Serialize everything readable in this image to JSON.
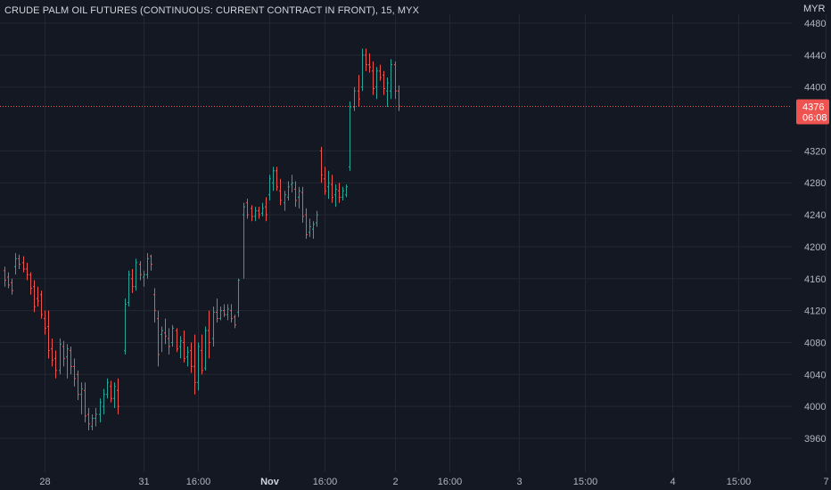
{
  "title": "CRUDE PALM OIL FUTURES (CONTINUOUS: CURRENT CONTRACT IN FRONT), 15, MYX",
  "currency": "MYR",
  "colors": {
    "up": "#26a69a",
    "down": "#ef5350",
    "background": "#141823",
    "grid": "#232733",
    "price_line": "#ef5350"
  },
  "current_price": {
    "price": "4376",
    "countdown": "06:08",
    "value": 4376
  },
  "chart_data": {
    "type": "ohlc-bar",
    "interval": "15",
    "exchange": "MYX",
    "y_ticks": [
      4480,
      4440,
      4400,
      4320,
      4280,
      4240,
      4200,
      4160,
      4120,
      4080,
      4040,
      4000,
      3960
    ],
    "ylim": [
      3930,
      4498
    ],
    "x_ticks": [
      {
        "label": "28",
        "bold": false,
        "bar": 11
      },
      {
        "label": "31",
        "bold": false,
        "bar": 37
      },
      {
        "label": "16:00",
        "bold": false,
        "bar": 52
      },
      {
        "label": "Nov",
        "bold": true,
        "bar": 71
      },
      {
        "label": "16:00",
        "bold": false,
        "bar": 86
      },
      {
        "label": "2",
        "bold": false,
        "bar": 105
      },
      {
        "label": "16:00",
        "bold": false,
        "bar": 120
      },
      {
        "label": "3",
        "bold": false,
        "bar": 139
      },
      {
        "label": "15:00",
        "bold": false,
        "bar": 157
      },
      {
        "label": "4",
        "bold": false,
        "bar": 181
      },
      {
        "label": "15:00",
        "bold": false,
        "bar": 199
      },
      {
        "label": "7",
        "bold": false,
        "bar": 223
      }
    ],
    "bars": [
      [
        4170,
        4175,
        4150,
        4158
      ],
      [
        4162,
        4168,
        4148,
        4152
      ],
      [
        4155,
        4160,
        4140,
        4145
      ],
      [
        4175,
        4192,
        4165,
        4185
      ],
      [
        4185,
        4190,
        4172,
        4178
      ],
      [
        4180,
        4188,
        4168,
        4172
      ],
      [
        4172,
        4180,
        4158,
        4165
      ],
      [
        4165,
        4168,
        4140,
        4148
      ],
      [
        4150,
        4158,
        4118,
        4125
      ],
      [
        4135,
        4150,
        4125,
        4132
      ],
      [
        4140,
        4145,
        4110,
        4115
      ],
      [
        4110,
        4120,
        4090,
        4098
      ],
      [
        4100,
        4120,
        4060,
        4070
      ],
      [
        4072,
        4085,
        4050,
        4058
      ],
      [
        4060,
        4070,
        4035,
        4045
      ],
      [
        4045,
        4085,
        4040,
        4078
      ],
      [
        4075,
        4082,
        4050,
        4060
      ],
      [
        4062,
        4078,
        4035,
        4072
      ],
      [
        4070,
        4075,
        4040,
        4050
      ],
      [
        4050,
        4060,
        4025,
        4035
      ],
      [
        4040,
        4045,
        4008,
        4015
      ],
      [
        4015,
        4030,
        3990,
        4022
      ],
      [
        4020,
        4030,
        3980,
        3988
      ],
      [
        3990,
        3998,
        3970,
        3978
      ],
      [
        3975,
        3990,
        3970,
        3985
      ],
      [
        3985,
        3998,
        3975,
        3990
      ],
      [
        3990,
        4010,
        3980,
        4005
      ],
      [
        4000,
        4022,
        3990,
        4015
      ],
      [
        4015,
        4035,
        4010,
        4030
      ],
      [
        4025,
        4032,
        4005,
        4010
      ],
      [
        4010,
        4030,
        3998,
        4025
      ],
      [
        4020,
        4035,
        3990,
        4000
      ],
      [
        4070,
        4135,
        4065,
        4128
      ],
      [
        4130,
        4170,
        4125,
        4165
      ],
      [
        4160,
        4172,
        4142,
        4150
      ],
      [
        4150,
        4185,
        4145,
        4180
      ],
      [
        4178,
        4182,
        4158,
        4165
      ],
      [
        4162,
        4170,
        4150,
        4165
      ],
      [
        4165,
        4192,
        4160,
        4185
      ],
      [
        4188,
        4190,
        4170,
        4178
      ],
      [
        4140,
        4148,
        4105,
        4120
      ],
      [
        4110,
        4120,
        4050,
        4065
      ],
      [
        4090,
        4100,
        4068,
        4095
      ],
      [
        4092,
        4110,
        4078,
        4088
      ],
      [
        4085,
        4098,
        4065,
        4075
      ],
      [
        4080,
        4102,
        4075,
        4098
      ],
      [
        4095,
        4098,
        4068,
        4072
      ],
      [
        4075,
        4088,
        4060,
        4082
      ],
      [
        4080,
        4095,
        4055,
        4060
      ],
      [
        4062,
        4075,
        4050,
        4068
      ],
      [
        4070,
        4080,
        4042,
        4050
      ],
      [
        4050,
        4090,
        4015,
        4030
      ],
      [
        4030,
        4080,
        4020,
        4075
      ],
      [
        4070,
        4090,
        4040,
        4045
      ],
      [
        4048,
        4100,
        4045,
        4095
      ],
      [
        4095,
        4120,
        4060,
        4080
      ],
      [
        4085,
        4125,
        4075,
        4118
      ],
      [
        4118,
        4135,
        4105,
        4110
      ],
      [
        4110,
        4125,
        4108,
        4120
      ],
      [
        4120,
        4128,
        4112,
        4115
      ],
      [
        4115,
        4128,
        4108,
        4122
      ],
      [
        4120,
        4128,
        4105,
        4110
      ],
      [
        4112,
        4115,
        4098,
        4102
      ],
      [
        4118,
        4160,
        4112,
        4158
      ],
      [
        4240,
        4255,
        4160,
        4250
      ],
      [
        4255,
        4260,
        4235,
        4240
      ],
      [
        4248,
        4252,
        4232,
        4238
      ],
      [
        4238,
        4250,
        4232,
        4245
      ],
      [
        4245,
        4250,
        4235,
        4240
      ],
      [
        4242,
        4255,
        4238,
        4248
      ],
      [
        4250,
        4262,
        4232,
        4240
      ],
      [
        4265,
        4290,
        4258,
        4285
      ],
      [
        4280,
        4300,
        4270,
        4295
      ],
      [
        4295,
        4300,
        4270,
        4275
      ],
      [
        4270,
        4285,
        4252,
        4258
      ],
      [
        4255,
        4270,
        4245,
        4265
      ],
      [
        4262,
        4282,
        4258,
        4275
      ],
      [
        4278,
        4290,
        4268,
        4280
      ],
      [
        4272,
        4282,
        4250,
        4258
      ],
      [
        4262,
        4275,
        4248,
        4270
      ],
      [
        4268,
        4275,
        4230,
        4238
      ],
      [
        4240,
        4248,
        4210,
        4215
      ],
      [
        4218,
        4235,
        4212,
        4225
      ],
      [
        4222,
        4232,
        4210,
        4228
      ],
      [
        4230,
        4245,
        4225,
        4240
      ],
      [
        4320,
        4325,
        4280,
        4290
      ],
      [
        4285,
        4300,
        4265,
        4270
      ],
      [
        4275,
        4295,
        4260,
        4280
      ],
      [
        4278,
        4290,
        4255,
        4262
      ],
      [
        4265,
        4278,
        4250,
        4272
      ],
      [
        4270,
        4280,
        4255,
        4262
      ],
      [
        4262,
        4275,
        4258,
        4270
      ],
      [
        4265,
        4278,
        4262,
        4275
      ],
      [
        4300,
        4382,
        4295,
        4375
      ],
      [
        4375,
        4400,
        4370,
        4395
      ],
      [
        4395,
        4415,
        4375,
        4385
      ],
      [
        4400,
        4448,
        4395,
        4440
      ],
      [
        4440,
        4448,
        4420,
        4428
      ],
      [
        4428,
        4442,
        4418,
        4425
      ],
      [
        4420,
        4432,
        4390,
        4398
      ],
      [
        4400,
        4425,
        4385,
        4420
      ],
      [
        4420,
        4428,
        4408,
        4412
      ],
      [
        4415,
        4420,
        4390,
        4398
      ],
      [
        4395,
        4412,
        4375,
        4405
      ],
      [
        4395,
        4435,
        4385,
        4428
      ],
      [
        4428,
        4432,
        4385,
        4395
      ],
      [
        4395,
        4402,
        4370,
        4376
      ]
    ],
    "bar_gap_after": {
      "31": 4,
      "63": 2,
      "93": 1
    }
  }
}
